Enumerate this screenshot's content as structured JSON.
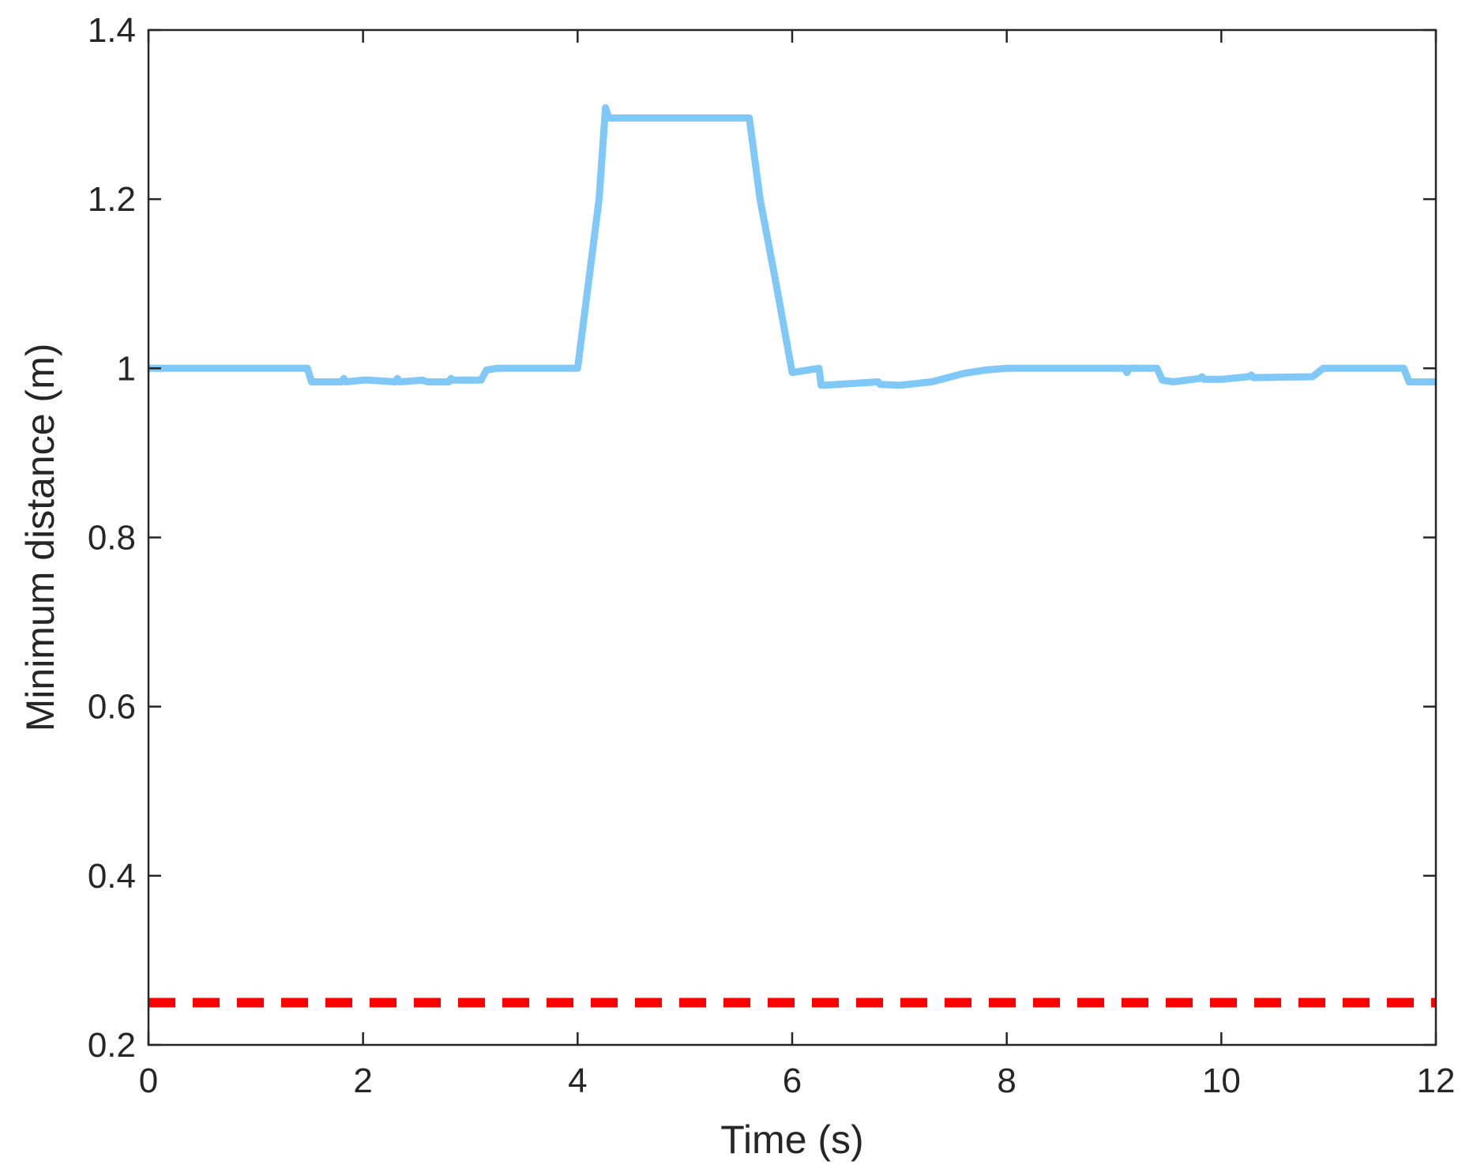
{
  "chart_data": {
    "type": "line",
    "title": "",
    "xlabel": "Time (s)",
    "ylabel": "Minimum distance (m)",
    "xlim": [
      0,
      12
    ],
    "ylim": [
      0.2,
      1.4
    ],
    "xticks": [
      0,
      2,
      4,
      6,
      8,
      10,
      12
    ],
    "yticks": [
      0.2,
      0.4,
      0.6,
      0.8,
      1,
      1.2,
      1.4
    ],
    "xtick_labels": [
      "0",
      "2",
      "4",
      "6",
      "8",
      "10",
      "12"
    ],
    "ytick_labels": [
      "0.2",
      "0.4",
      "0.6",
      "0.8",
      "1",
      "1.2",
      "1.4"
    ],
    "grid": false,
    "legend": "none",
    "series": [
      {
        "color": "#80c8f8",
        "line_style": "solid",
        "x": [
          0,
          1.48,
          1.52,
          1.6,
          1.8,
          1.82,
          1.84,
          2.0,
          2.05,
          2.3,
          2.32,
          2.34,
          2.55,
          2.6,
          2.8,
          2.82,
          2.84,
          3.1,
          3.15,
          3.25,
          3.5,
          4.0,
          4.2,
          4.26,
          4.28,
          4.3,
          5.0,
          5.6,
          5.7,
          5.85,
          6.0,
          6.25,
          6.27,
          6.3,
          6.8,
          6.82,
          7.0,
          7.3,
          7.6,
          7.8,
          8.0,
          8.5,
          9.0,
          9.1,
          9.12,
          9.14,
          9.4,
          9.45,
          9.55,
          9.8,
          9.82,
          9.84,
          10.0,
          10.25,
          10.28,
          10.3,
          10.85,
          10.95,
          11.7,
          11.75,
          12
        ],
        "y": [
          1.0,
          1.0,
          0.984,
          0.984,
          0.984,
          0.988,
          0.984,
          0.986,
          0.986,
          0.984,
          0.988,
          0.984,
          0.986,
          0.984,
          0.984,
          0.988,
          0.986,
          0.986,
          0.998,
          1.0,
          1.0,
          1.0,
          1.2,
          1.308,
          1.3,
          1.296,
          1.296,
          1.296,
          1.2,
          1.1,
          0.995,
          1.0,
          0.98,
          0.98,
          0.984,
          0.981,
          0.98,
          0.984,
          0.994,
          0.998,
          1.0,
          1.0,
          1.0,
          1.0,
          0.995,
          1.0,
          1.0,
          0.986,
          0.984,
          0.988,
          0.99,
          0.987,
          0.987,
          0.99,
          0.992,
          0.989,
          0.99,
          1.0,
          1.0,
          0.984,
          0.984
        ]
      },
      {
        "color": "#ff0000",
        "line_style": "dashed",
        "x": [
          0,
          12
        ],
        "y": [
          0.25,
          0.25
        ]
      }
    ]
  }
}
